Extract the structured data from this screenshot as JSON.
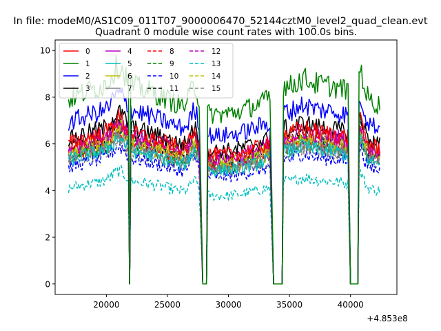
{
  "suptitle": "In file: modeM0/AS1C09_011T07_9000006470_52144cztM0_level2_quad_clean.evt",
  "chart_data": {
    "type": "line",
    "title": "Quadrant 0 module wise count rates with 100.0s bins.",
    "xlabel": "",
    "ylabel": "",
    "x_offset_label": "+4.853e8",
    "xlim": [
      15800,
      43800
    ],
    "ylim": [
      -0.45,
      10.45
    ],
    "x_ticks": [
      20000,
      25000,
      30000,
      35000,
      40000
    ],
    "x_tick_labels": [
      "20000",
      "25000",
      "30000",
      "35000",
      "40000"
    ],
    "y_ticks": [
      0,
      2,
      4,
      6,
      8,
      10
    ],
    "y_tick_labels": [
      "0",
      "2",
      "4",
      "6",
      "8",
      "10"
    ],
    "grid": false,
    "legend_position": "top-left",
    "legend_columns": 4,
    "x_start": 16900,
    "x_step": 100,
    "x_end": 42400,
    "gaps": [
      {
        "down_start": 21800,
        "zero_from": 21900,
        "zero_to": 21900,
        "up_end": 22000
      },
      {
        "down_start": 27600,
        "zero_from": 27900,
        "zero_to": 28200,
        "up_end": 28300
      },
      {
        "down_start": 33400,
        "zero_from": 33700,
        "zero_to": 34400,
        "up_end": 34500
      },
      {
        "down_start": 39800,
        "zero_from": 40000,
        "zero_to": 40600,
        "up_end": 40700
      }
    ],
    "series": [
      {
        "name": "0",
        "color": "#ff0000",
        "dash": false,
        "base": 6.0
      },
      {
        "name": "1",
        "color": "#008000",
        "dash": false,
        "base": 7.9
      },
      {
        "name": "2",
        "color": "#0000ff",
        "dash": false,
        "base": 6.9
      },
      {
        "name": "3",
        "color": "#000000",
        "dash": false,
        "base": 6.2
      },
      {
        "name": "4",
        "color": "#bf00bf",
        "dash": false,
        "base": 5.9
      },
      {
        "name": "5",
        "color": "#00bfbf",
        "dash": false,
        "base": 5.3
      },
      {
        "name": "6",
        "color": "#bfbf00",
        "dash": false,
        "base": 5.7
      },
      {
        "name": "7",
        "color": "#808080",
        "dash": false,
        "base": 5.4
      },
      {
        "name": "8",
        "color": "#ff0000",
        "dash": true,
        "base": 5.6
      },
      {
        "name": "9",
        "color": "#008000",
        "dash": true,
        "base": 5.5
      },
      {
        "name": "10",
        "color": "#0000ff",
        "dash": true,
        "base": 5.0
      },
      {
        "name": "11",
        "color": "#000000",
        "dash": true,
        "base": 5.8
      },
      {
        "name": "12",
        "color": "#bf00bf",
        "dash": true,
        "base": 5.6
      },
      {
        "name": "13",
        "color": "#00bfbf",
        "dash": true,
        "base": 4.1
      },
      {
        "name": "14",
        "color": "#bfbf00",
        "dash": true,
        "base": 5.5
      },
      {
        "name": "15",
        "color": "#808080",
        "dash": true,
        "base": 5.2
      }
    ]
  }
}
